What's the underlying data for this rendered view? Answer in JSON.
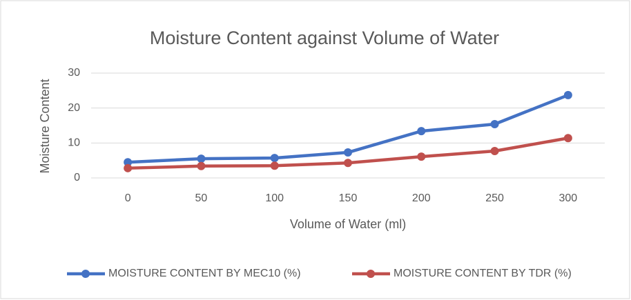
{
  "chart_data": {
    "type": "line",
    "title": "Moisture Content against Volume of Water",
    "x_label": "Volume of Water (ml)",
    "y_label": "Moisture Content",
    "categories": [
      0,
      50,
      100,
      150,
      200,
      250,
      300
    ],
    "series": [
      {
        "name": "MOISTURE CONTENT BY MEC10 (%)",
        "color": "#4472c4",
        "values": [
          4.5,
          5.5,
          5.7,
          7.3,
          13.4,
          15.4,
          23.7
        ]
      },
      {
        "name": "MOISTURE CONTENT BY TDR (%)",
        "color": "#c0504d",
        "values": [
          2.8,
          3.4,
          3.5,
          4.3,
          6.1,
          7.7,
          11.4
        ]
      }
    ],
    "ylim": [
      0,
      30
    ],
    "yticks": [
      0,
      10,
      20,
      30
    ],
    "grid": true,
    "legend": "bottom"
  }
}
